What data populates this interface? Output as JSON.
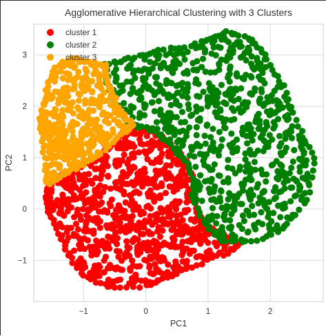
{
  "chart_data": {
    "type": "scatter",
    "title": "Agglomerative Hierarchical Clustering with 3 Clusters",
    "xlabel": "PC1",
    "ylabel": "PC2",
    "xlim": [
      -1.8,
      2.85
    ],
    "ylim": [
      -1.8,
      3.6
    ],
    "xticks": [
      -1,
      0,
      1,
      2
    ],
    "yticks": [
      -1,
      0,
      1,
      2,
      3
    ],
    "xtick_labels": [
      "−1",
      "0",
      "1",
      "2"
    ],
    "ytick_labels": [
      "−1",
      "0",
      "1",
      "2",
      "3"
    ],
    "grid": true,
    "legend_position": "top-left",
    "series": [
      {
        "name": "cluster 1",
        "color": "#ff0000",
        "region_outline": [
          [
            -1.55,
            0.55
          ],
          [
            -1.2,
            0.75
          ],
          [
            -0.8,
            1.0
          ],
          [
            -0.4,
            1.45
          ],
          [
            -0.2,
            1.62
          ],
          [
            0.1,
            1.55
          ],
          [
            0.35,
            1.3
          ],
          [
            0.6,
            1.0
          ],
          [
            0.8,
            0.55
          ],
          [
            0.75,
            0.2
          ],
          [
            0.95,
            -0.3
          ],
          [
            1.5,
            -0.65
          ],
          [
            1.4,
            -0.8
          ],
          [
            0.9,
            -1.05
          ],
          [
            0.4,
            -1.3
          ],
          [
            0.0,
            -1.5
          ],
          [
            -0.6,
            -1.52
          ],
          [
            -1.0,
            -1.3
          ],
          [
            -1.25,
            -0.9
          ],
          [
            -1.45,
            -0.3
          ],
          [
            -1.6,
            0.1
          ]
        ]
      },
      {
        "name": "cluster 2",
        "color": "#008000",
        "region_outline": [
          [
            -0.65,
            2.8
          ],
          [
            -0.2,
            2.95
          ],
          [
            0.3,
            3.1
          ],
          [
            0.8,
            3.2
          ],
          [
            1.3,
            3.45
          ],
          [
            1.7,
            3.3
          ],
          [
            1.9,
            3.0
          ],
          [
            2.2,
            2.4
          ],
          [
            2.45,
            1.6
          ],
          [
            2.7,
            1.0
          ],
          [
            2.6,
            0.2
          ],
          [
            2.2,
            -0.4
          ],
          [
            1.7,
            -0.65
          ],
          [
            1.2,
            -0.6
          ],
          [
            0.95,
            -0.3
          ],
          [
            0.75,
            0.2
          ],
          [
            0.8,
            0.55
          ],
          [
            0.6,
            1.0
          ],
          [
            0.35,
            1.3
          ],
          [
            0.1,
            1.55
          ],
          [
            -0.2,
            1.62
          ],
          [
            -0.4,
            1.9
          ],
          [
            -0.6,
            2.4
          ]
        ]
      },
      {
        "name": "cluster 3",
        "color": "#ffa500",
        "region_outline": [
          [
            -1.6,
            0.55
          ],
          [
            -1.65,
            1.2
          ],
          [
            -1.7,
            1.75
          ],
          [
            -1.6,
            2.3
          ],
          [
            -1.45,
            2.75
          ],
          [
            -1.2,
            2.95
          ],
          [
            -0.9,
            2.85
          ],
          [
            -0.65,
            2.8
          ],
          [
            -0.6,
            2.4
          ],
          [
            -0.4,
            1.9
          ],
          [
            -0.2,
            1.62
          ],
          [
            -0.4,
            1.45
          ],
          [
            -0.8,
            1.0
          ],
          [
            -1.2,
            0.75
          ],
          [
            -1.55,
            0.5
          ]
        ]
      }
    ]
  }
}
